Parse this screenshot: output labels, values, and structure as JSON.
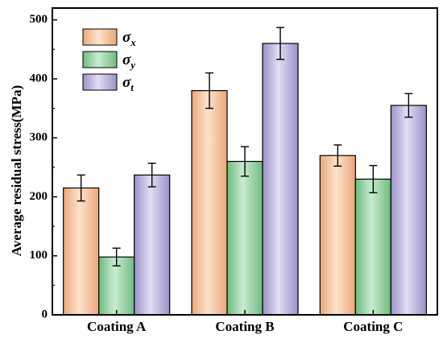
{
  "chart_data": {
    "type": "bar",
    "categories": [
      "Coating A",
      "Coating B",
      "Coating C"
    ],
    "ylabel": "Average residual stress(MPa)",
    "xlabel": "",
    "ylim": [
      0,
      520
    ],
    "yticks": [
      0,
      100,
      200,
      300,
      400,
      500
    ],
    "grid": false,
    "legend_position": "top-left",
    "series": [
      {
        "name": "σx",
        "symbol": "σ",
        "subscript": "x",
        "color": "#f7c49c",
        "values": [
          215,
          380,
          270
        ],
        "errors": [
          22,
          30,
          18
        ]
      },
      {
        "name": "σy",
        "symbol": "σ",
        "subscript": "y",
        "color": "#99d3a5",
        "values": [
          98,
          260,
          230
        ],
        "errors": [
          15,
          25,
          23
        ]
      },
      {
        "name": "σt",
        "symbol": "σ",
        "subscript": "t",
        "color": "#b9b3dc",
        "values": [
          237,
          460,
          355
        ],
        "errors": [
          20,
          27,
          20
        ]
      }
    ]
  }
}
